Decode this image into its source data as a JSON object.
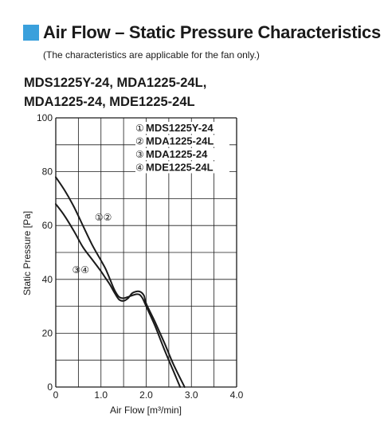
{
  "heading": {
    "title": "Air Flow – Static Pressure Characteristics",
    "note": "(The characteristics are applicable for the fan only.)",
    "models_line1": "MDS1225Y-24, MDA1225-24L,",
    "models_line2": "MDA1225-24, MDE1225-24L"
  },
  "colors": {
    "accent": "#3aa0dc",
    "curve": "#1a1a1a"
  },
  "chart_data": {
    "type": "line",
    "xlabel": "Air Flow [m³/min]",
    "ylabel": "Static Pressure [Pa]",
    "xlim": [
      0,
      4.0
    ],
    "ylim": [
      0,
      100
    ],
    "x_ticks": [
      "0",
      "1.0",
      "2.0",
      "3.0",
      "4.0"
    ],
    "y_ticks": [
      "0",
      "20",
      "40",
      "60",
      "80",
      "100"
    ],
    "grid": true,
    "legend": {
      "placement": "top-right",
      "entries": [
        {
          "marker": "①",
          "label": "MDS1225Y-24"
        },
        {
          "marker": "②",
          "label": "MDA1225-24L"
        },
        {
          "marker": "③",
          "label": "MDA1225-24"
        },
        {
          "marker": "④",
          "label": "MDE1225-24L"
        }
      ]
    },
    "series": [
      {
        "markers": "①②",
        "points": [
          [
            0,
            78
          ],
          [
            0.2,
            73
          ],
          [
            0.4,
            67
          ],
          [
            0.6,
            60
          ],
          [
            0.8,
            53
          ],
          [
            1.0,
            47
          ],
          [
            1.1,
            44
          ],
          [
            1.2,
            40
          ],
          [
            1.3,
            36
          ],
          [
            1.4,
            33.5
          ],
          [
            1.5,
            33
          ],
          [
            1.6,
            33.5
          ],
          [
            1.8,
            34.5
          ],
          [
            1.9,
            33.5
          ],
          [
            2.0,
            30
          ],
          [
            2.2,
            22.5
          ],
          [
            2.4,
            14
          ],
          [
            2.6,
            6
          ],
          [
            2.75,
            0
          ]
        ]
      },
      {
        "markers": "③④",
        "points": [
          [
            0,
            68
          ],
          [
            0.2,
            63.5
          ],
          [
            0.4,
            58
          ],
          [
            0.6,
            52
          ],
          [
            0.8,
            47.5
          ],
          [
            1.0,
            43
          ],
          [
            1.1,
            40.5
          ],
          [
            1.2,
            38
          ],
          [
            1.3,
            35
          ],
          [
            1.4,
            32.5
          ],
          [
            1.5,
            32
          ],
          [
            1.6,
            33
          ],
          [
            1.7,
            35
          ],
          [
            1.85,
            35.5
          ],
          [
            1.95,
            34
          ],
          [
            2.0,
            31
          ],
          [
            2.2,
            24
          ],
          [
            2.4,
            16.5
          ],
          [
            2.6,
            8.5
          ],
          [
            2.85,
            0
          ]
        ]
      }
    ]
  }
}
